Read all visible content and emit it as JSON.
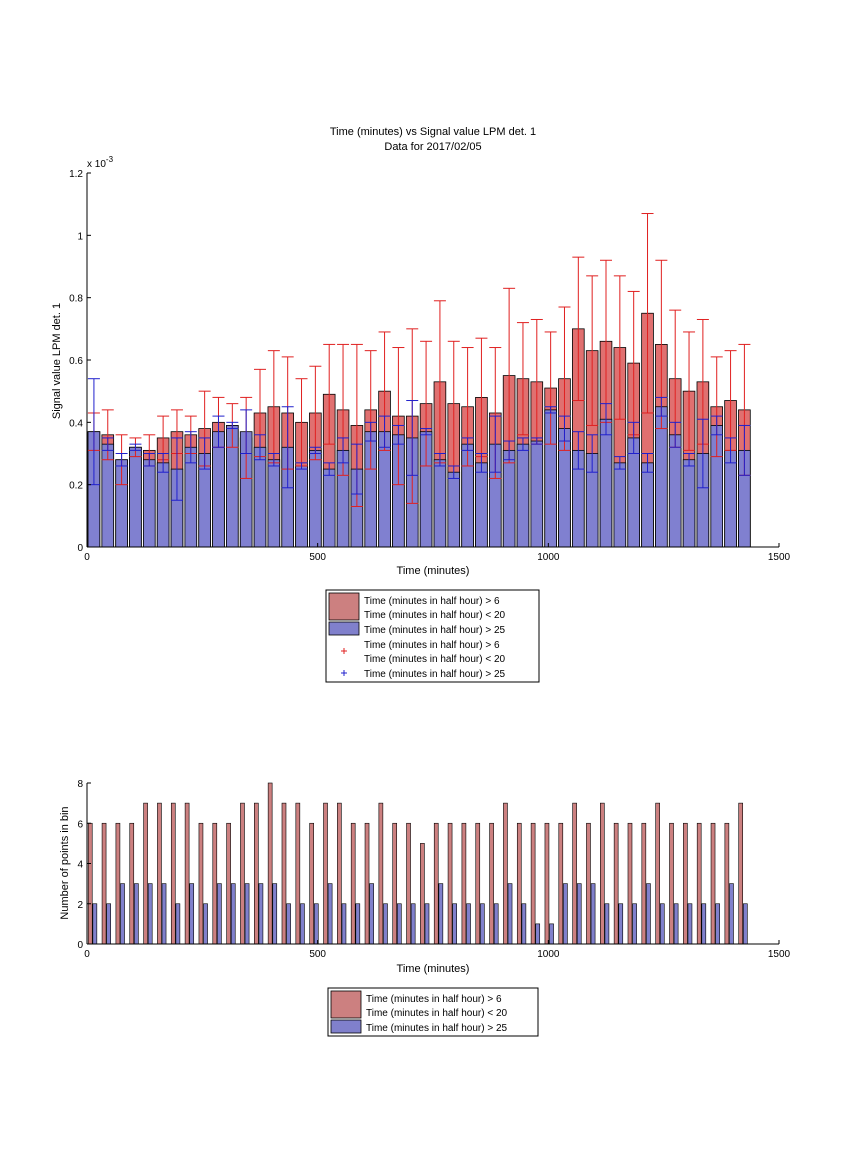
{
  "chart_data": [
    {
      "type": "bar",
      "title": "Time (minutes) vs Signal value LPM det. 1",
      "subtitle": "Data for 2017/02/05",
      "xlabel": "Time (minutes)",
      "ylabel": "Signal value LPM det. 1",
      "exponent_label": "x 10",
      "exponent_power": "-3",
      "xlim": [
        0,
        1500
      ],
      "ylim": [
        0,
        1.2
      ],
      "x_ticks": [
        "0",
        "500",
        "1000",
        "1500"
      ],
      "y_ticks": [
        "0",
        "0.2",
        "0.4",
        "0.6",
        "0.8",
        "1",
        "1.2"
      ],
      "grid": false,
      "legend_position": "below",
      "legend": [
        {
          "line1": "Time (minutes in half hour) > 6",
          "line2": "Time (minutes in half hour) < 20",
          "marker": "patch",
          "color": "#cc8080"
        },
        {
          "line1": "Time (minutes in half hour) > 25",
          "marker": "patch",
          "color": "#8080cc"
        },
        {
          "line1": "Time (minutes in half hour) > 6",
          "line2": "Time (minutes in half hour) < 20",
          "marker": "+",
          "color": "#e02020"
        },
        {
          "line1": "Time (minutes in half hour) > 25",
          "marker": "+",
          "color": "#2020cc"
        }
      ],
      "series": [
        {
          "color": "#e07070",
          "error_color": "#e02020",
          "x": [
            15,
            45,
            75,
            105,
            135,
            165,
            195,
            225,
            255,
            285,
            315,
            345,
            375,
            405,
            435,
            465,
            495,
            525,
            555,
            585,
            615,
            645,
            675,
            705,
            735,
            765,
            795,
            825,
            855,
            885,
            915,
            945,
            975,
            1005,
            1035,
            1065,
            1095,
            1125,
            1155,
            1185,
            1215,
            1245,
            1275,
            1305,
            1335,
            1365,
            1395,
            1425
          ],
          "values": [
            0.37,
            0.36,
            0.28,
            0.32,
            0.31,
            0.35,
            0.37,
            0.36,
            0.38,
            0.4,
            0.39,
            0.35,
            0.43,
            0.45,
            0.43,
            0.4,
            0.43,
            0.49,
            0.44,
            0.39,
            0.44,
            0.5,
            0.42,
            0.42,
            0.46,
            0.53,
            0.46,
            0.45,
            0.48,
            0.43,
            0.55,
            0.54,
            0.53,
            0.51,
            0.54,
            0.7,
            0.63,
            0.66,
            0.64,
            0.59,
            0.75,
            0.65,
            0.54,
            0.5,
            0.53,
            0.45,
            0.47,
            0.44
          ],
          "errors": [
            0.06,
            0.08,
            0.08,
            0.03,
            0.05,
            0.07,
            0.07,
            0.06,
            0.12,
            0.08,
            0.07,
            0.13,
            0.14,
            0.18,
            0.18,
            0.14,
            0.15,
            0.16,
            0.21,
            0.26,
            0.19,
            0.19,
            0.22,
            0.28,
            0.2,
            0.26,
            0.2,
            0.19,
            0.19,
            0.21,
            0.28,
            0.18,
            0.2,
            0.18,
            0.23,
            0.23,
            0.24,
            0.26,
            0.23,
            0.23,
            0.32,
            0.27,
            0.22,
            0.19,
            0.2,
            0.16,
            0.16,
            0.21
          ]
        },
        {
          "color": "#8080d0",
          "error_color": "#2020cc",
          "x": [
            15,
            45,
            75,
            105,
            135,
            165,
            195,
            225,
            255,
            285,
            315,
            345,
            375,
            405,
            435,
            465,
            495,
            525,
            555,
            585,
            615,
            645,
            675,
            705,
            735,
            765,
            795,
            825,
            855,
            885,
            915,
            945,
            975,
            1005,
            1035,
            1065,
            1095,
            1125,
            1155,
            1185,
            1215,
            1245,
            1275,
            1305,
            1335,
            1365,
            1395,
            1425
          ],
          "values": [
            0.37,
            0.33,
            0.28,
            0.32,
            0.28,
            0.27,
            0.25,
            0.32,
            0.3,
            0.37,
            0.39,
            0.37,
            0.32,
            0.28,
            0.32,
            0.26,
            0.31,
            0.25,
            0.31,
            0.25,
            0.37,
            0.37,
            0.36,
            0.35,
            0.37,
            0.28,
            0.24,
            0.33,
            0.27,
            0.33,
            0.31,
            0.33,
            0.34,
            0.44,
            0.38,
            0.31,
            0.3,
            0.41,
            0.27,
            0.35,
            0.27,
            0.45,
            0.36,
            0.28,
            0.3,
            0.39,
            0.31,
            0.31
          ],
          "errors": [
            0.17,
            0.02,
            0.02,
            0.01,
            0.02,
            0.03,
            0.1,
            0.05,
            0.05,
            0.05,
            0.01,
            0.07,
            0.04,
            0.02,
            0.13,
            0.01,
            0.01,
            0.02,
            0.04,
            0.08,
            0.03,
            0.05,
            0.03,
            0.12,
            0.01,
            0.02,
            0.02,
            0.02,
            0.03,
            0.09,
            0.03,
            0.02,
            0.01,
            0.01,
            0.04,
            0.06,
            0.06,
            0.05,
            0.02,
            0.05,
            0.03,
            0.03,
            0.04,
            0.02,
            0.11,
            0.03,
            0.04,
            0.08
          ]
        }
      ]
    },
    {
      "type": "bar",
      "xlabel": "Time (minutes)",
      "ylabel": "Number of points in bin",
      "xlim": [
        0,
        1500
      ],
      "ylim": [
        0,
        8
      ],
      "x_ticks": [
        "0",
        "500",
        "1000",
        "1500"
      ],
      "y_ticks": [
        "0",
        "2",
        "4",
        "6",
        "8"
      ],
      "grid": false,
      "legend_position": "below",
      "legend": [
        {
          "line1": "Time (minutes in half hour) > 6",
          "line2": "Time (minutes in half hour) < 20",
          "marker": "patch",
          "color": "#cc8080"
        },
        {
          "line1": "Time (minutes in half hour) > 25",
          "marker": "patch",
          "color": "#8080cc"
        }
      ],
      "series": [
        {
          "color": "#cc8080",
          "x": [
            7,
            37,
            67,
            97,
            127,
            157,
            187,
            217,
            247,
            277,
            307,
            337,
            367,
            397,
            427,
            457,
            487,
            517,
            547,
            577,
            607,
            637,
            667,
            697,
            727,
            757,
            787,
            817,
            847,
            877,
            907,
            937,
            967,
            997,
            1027,
            1057,
            1087,
            1117,
            1147,
            1177,
            1207,
            1237,
            1267,
            1297,
            1327,
            1357,
            1387,
            1417
          ],
          "values": [
            6,
            6,
            6,
            6,
            7,
            7,
            7,
            7,
            6,
            6,
            6,
            7,
            7,
            8,
            7,
            7,
            6,
            7,
            7,
            6,
            6,
            7,
            6,
            6,
            5,
            6,
            6,
            6,
            6,
            6,
            7,
            6,
            6,
            6,
            6,
            7,
            6,
            7,
            6,
            6,
            6,
            7,
            6,
            6,
            6,
            6,
            6,
            7
          ]
        },
        {
          "color": "#8080cc",
          "x": [
            17,
            47,
            77,
            107,
            137,
            167,
            197,
            227,
            257,
            287,
            317,
            347,
            377,
            407,
            437,
            467,
            497,
            527,
            557,
            587,
            617,
            647,
            677,
            707,
            737,
            767,
            797,
            827,
            857,
            887,
            917,
            947,
            977,
            1007,
            1037,
            1067,
            1097,
            1127,
            1157,
            1187,
            1217,
            1247,
            1277,
            1307,
            1337,
            1367,
            1397,
            1427
          ],
          "values": [
            2,
            2,
            3,
            3,
            3,
            3,
            2,
            3,
            2,
            3,
            3,
            3,
            3,
            3,
            2,
            2,
            2,
            3,
            2,
            2,
            3,
            2,
            2,
            2,
            2,
            3,
            2,
            2,
            2,
            2,
            3,
            2,
            1,
            1,
            3,
            3,
            3,
            2,
            2,
            2,
            3,
            2,
            2,
            2,
            2,
            2,
            3,
            2
          ]
        }
      ]
    }
  ]
}
